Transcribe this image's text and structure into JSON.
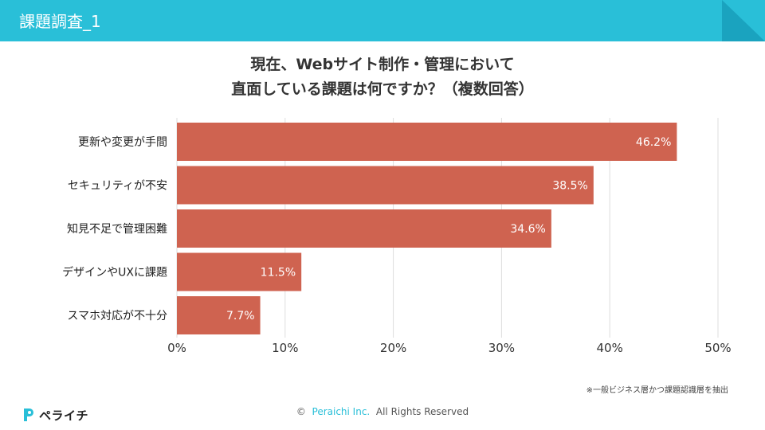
{
  "header": {
    "title": "課題調査_1"
  },
  "chart_data": {
    "type": "bar",
    "orientation": "horizontal",
    "title_lines": [
      "現在、Webサイト制作・管理において",
      "直面している課題は何ですか？（複数回答）"
    ],
    "categories": [
      "更新や変更が手間",
      "セキュリティが不安",
      "知見不足で管理困難",
      "デザインやUXに課題",
      "スマホ対応が不十分"
    ],
    "values": [
      46.2,
      38.5,
      34.6,
      11.5,
      7.7
    ],
    "value_labels": [
      "46.2%",
      "38.5%",
      "34.6%",
      "11.5%",
      "7.7%"
    ],
    "xlim": [
      0,
      50
    ],
    "ticks": [
      0,
      10,
      20,
      30,
      40,
      50
    ],
    "tick_labels": [
      "0%",
      "10%",
      "20%",
      "30%",
      "40%",
      "50%"
    ],
    "grid": true,
    "bar_color": "#cf6350"
  },
  "note": "※一般ビジネス層かつ課題認識層を抽出",
  "logo": {
    "text": "ペライチ"
  },
  "footer": {
    "copyright": "©",
    "company": "Peraichi Inc.",
    "rights": "All Rights Reserved"
  },
  "colors": {
    "header": "#29bfd8",
    "bar": "#cf6350",
    "grid": "#dddddd"
  }
}
